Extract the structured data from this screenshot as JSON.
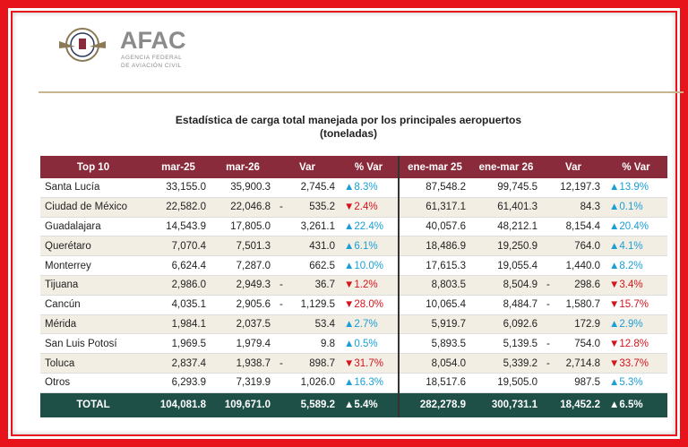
{
  "header": {
    "logo_text": "AFAC",
    "agency_line1": "AGENCIA FEDERAL",
    "agency_line2": "DE AVIACIÓN CIVIL"
  },
  "title": "Estadística de carga total manejada por los principales aeropuertos",
  "subtitle": "(toneladas)",
  "table": {
    "columns": [
      "Top 10",
      "mar-25",
      "mar-26",
      "Var",
      "% Var",
      "ene-mar 25",
      "ene-mar 26",
      "Var",
      "% Var"
    ],
    "rows": [
      [
        "Santa Lucía",
        "33,155.0",
        "35,900.3",
        "2,745.4",
        "▲8.3%",
        "87,548.2",
        "99,745.5",
        "12,197.3",
        "▲13.9%"
      ],
      [
        "Ciudad de México",
        "22,582.0",
        "22,046.8",
        {
          "sign": "-",
          "value": "535.2"
        },
        "▼2.4%",
        "61,317.1",
        "61,401.3",
        "84.3",
        "▲0.1%"
      ],
      [
        "Guadalajara",
        "14,543.9",
        "17,805.0",
        "3,261.1",
        "▲22.4%",
        "40,057.6",
        "48,212.1",
        "8,154.4",
        "▲20.4%"
      ],
      [
        "Querétaro",
        "7,070.4",
        "7,501.3",
        "431.0",
        "▲6.1%",
        "18,486.9",
        "19,250.9",
        "764.0",
        "▲4.1%"
      ],
      [
        "Monterrey",
        "6,624.4",
        "7,287.0",
        "662.5",
        "▲10.0%",
        "17,615.3",
        "19,055.4",
        "1,440.0",
        "▲8.2%"
      ],
      [
        "Tijuana",
        "2,986.0",
        "2,949.3",
        {
          "sign": "-",
          "value": "36.7"
        },
        "▼1.2%",
        "8,803.5",
        "8,504.9",
        {
          "sign": "-",
          "value": "298.6"
        },
        "▼3.4%"
      ],
      [
        "Cancún",
        "4,035.1",
        "2,905.6",
        {
          "sign": "-",
          "value": "1,129.5"
        },
        "▼28.0%",
        "10,065.4",
        "8,484.7",
        {
          "sign": "-",
          "value": "1,580.7"
        },
        "▼15.7%"
      ],
      [
        "Mérida",
        "1,984.1",
        "2,037.5",
        "53.4",
        "▲2.7%",
        "5,919.7",
        "6,092.6",
        "172.9",
        "▲2.9%"
      ],
      [
        "San Luis Potosí",
        "1,969.5",
        "1,979.4",
        "9.8",
        "▲0.5%",
        "5,893.5",
        "5,139.5",
        {
          "sign": "-",
          "value": "754.0"
        },
        "▼12.8%"
      ],
      [
        "Toluca",
        "2,837.4",
        "1,938.7",
        {
          "sign": "-",
          "value": "898.7"
        },
        "▼31.7%",
        "8,054.0",
        "5,339.2",
        {
          "sign": "-",
          "value": "2,714.8"
        },
        "▼33.7%"
      ],
      [
        "Otros",
        "6,293.9",
        "7,319.9",
        "1,026.0",
        "▲16.3%",
        "18,517.6",
        "19,505.0",
        "987.5",
        "▲5.3%"
      ]
    ],
    "total": [
      "TOTAL",
      "104,081.8",
      "109,671.0",
      "5,589.2",
      "▲5.4%",
      "282,278.9",
      "300,731.1",
      "18,452.2",
      "▲6.5%"
    ]
  }
}
